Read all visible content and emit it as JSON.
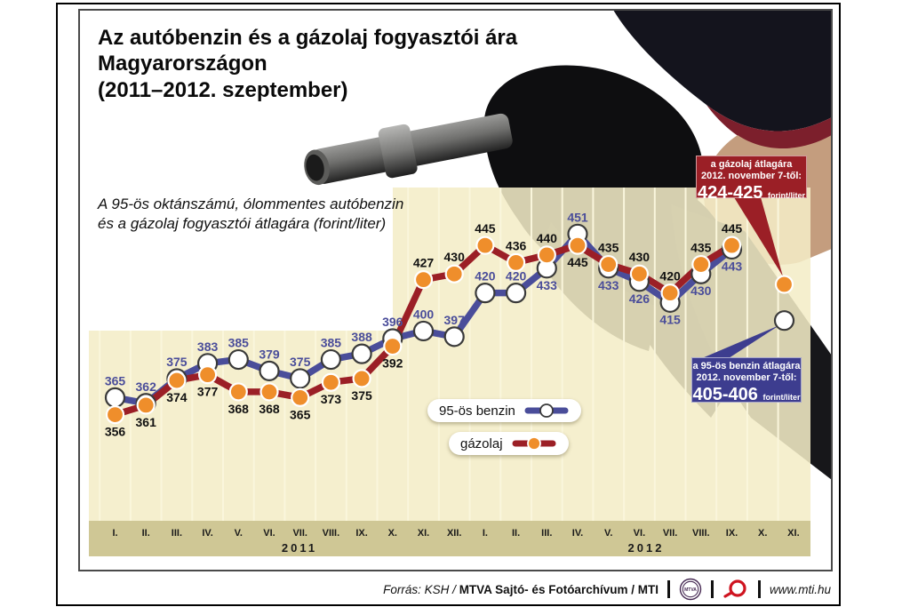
{
  "title": "Az autóbenzin és a gázolaj fogyasztói ára\nMagyarországon\n(2011–2012. szeptember)",
  "subtitle": "A 95-ös oktánszámú, ólommentes autóbenzin\nés a gázolaj fogyasztói átlagára (forint/liter)",
  "legend": {
    "benzin": "95-ös benzin",
    "gazolaj": "gázolaj"
  },
  "callouts": {
    "gazolaj": {
      "line1": "a gázolaj átlagára",
      "line2": "2012. november 7-től:",
      "value": "424-425",
      "unit": "forint/liter",
      "color": "#9b1f26"
    },
    "benzin": {
      "line1": "a 95-ös benzin átlagára",
      "line2": "2012. november 7-től:",
      "value": "405-406",
      "unit": "forint/liter",
      "color": "#3d3d8f"
    }
  },
  "footer": {
    "source_prefix": "Forrás: KSH /",
    "source_bold": "MTVA Sajtó- és Fotóarchívum / MTI",
    "mtva_logo_text": "MTVA",
    "website": "www.mti.hu"
  },
  "chart_data": {
    "type": "line",
    "title": "Az autóbenzin és a gázolaj fogyasztói ára Magyarországon (2011–2012. szeptember)",
    "subtitle": "A 95-ös oktánszámú, ólommentes autóbenzin és a gázolaj fogyasztói átlagára (forint/liter)",
    "unit": "forint/liter",
    "x_groups": [
      {
        "year": "2011",
        "months": [
          "I.",
          "II.",
          "III.",
          "IV.",
          "V.",
          "VI.",
          "VII.",
          "VIII.",
          "IX.",
          "X.",
          "XI.",
          "XII."
        ]
      },
      {
        "year": "2012",
        "months": [
          "I.",
          "II.",
          "III.",
          "IV.",
          "V.",
          "VI.",
          "VII.",
          "VIII.",
          "IX.",
          "X.",
          "XI."
        ]
      }
    ],
    "series": [
      {
        "name": "95-ös benzin",
        "color": "#4a4d9a",
        "marker_fill": "#ffffff",
        "marker_stroke": "#3a3a3a",
        "label_color": "#4a4d9a",
        "values": [
          365,
          362,
          375,
          383,
          385,
          379,
          375,
          385,
          388,
          396,
          400,
          397,
          420,
          420,
          433,
          451,
          433,
          426,
          415,
          430,
          443
        ],
        "label_side": [
          "a",
          "a",
          "a",
          "a",
          "a",
          "a",
          "a",
          "a",
          "a",
          "a",
          "a",
          "a",
          "a",
          "a",
          "b",
          "a",
          "b",
          "b",
          "b",
          "b",
          "b"
        ]
      },
      {
        "name": "gázolaj",
        "color": "#9b1f26",
        "marker_fill": "#ef8e2b",
        "marker_stroke": "#ffffff",
        "label_color": "#111111",
        "values": [
          356,
          361,
          374,
          377,
          368,
          368,
          365,
          373,
          375,
          392,
          427,
          430,
          445,
          436,
          440,
          445,
          435,
          430,
          420,
          435,
          445
        ],
        "label_side": [
          "b",
          "b",
          "b",
          "b",
          "b",
          "b",
          "b",
          "b",
          "b",
          "b",
          "a",
          "a",
          "a",
          "a",
          "a",
          "b",
          "a",
          "a",
          "a",
          "a",
          "a"
        ]
      }
    ],
    "announced_points": [
      {
        "series": "gázolaj",
        "value": 424.5,
        "label": "424-425",
        "month_index": 21.7
      },
      {
        "series": "95-ös benzin",
        "value": 405.5,
        "label": "405-406",
        "month_index": 21.7
      }
    ],
    "y_range_est": [
      300,
      475
    ],
    "gridlines": "vertical-monthly",
    "legend_position": "center-bottom"
  }
}
